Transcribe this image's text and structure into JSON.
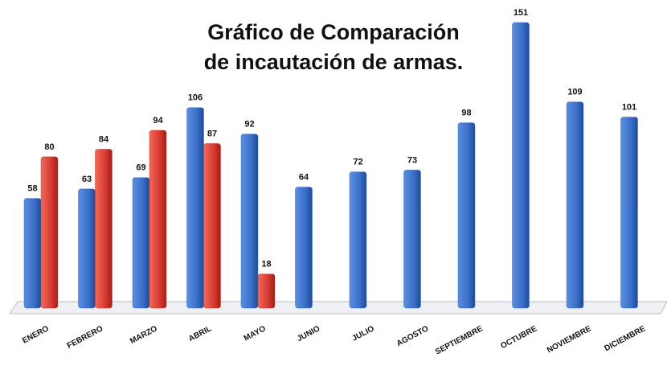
{
  "chart_data": {
    "type": "bar",
    "title": [
      "Gráfico de Comparación",
      "de incautación de armas."
    ],
    "categories": [
      "ENERO",
      "FEBRERO",
      "MARZO",
      "ABRIL",
      "MAYO",
      "JUNIO",
      "JULIO",
      "AGOSTO",
      "SEPTIEMBRE",
      "OCTUBRE",
      "NOVIEMBRE",
      "DICIEMBRE"
    ],
    "series": [
      {
        "color": "#3a6fc8",
        "values": [
          58,
          63,
          69,
          106,
          92,
          64,
          72,
          73,
          98,
          151,
          109,
          101
        ]
      },
      {
        "color": "#d83a30",
        "values": [
          80,
          84,
          94,
          87,
          18,
          null,
          null,
          null,
          null,
          null,
          null,
          null
        ]
      }
    ]
  }
}
